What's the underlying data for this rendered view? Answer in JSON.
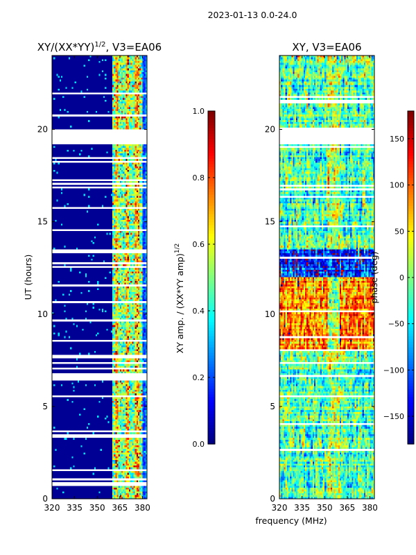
{
  "suptitle": "2023-01-13 0.0-24.0",
  "xlabel_shared": "frequency (MHz)",
  "chart_data": [
    {
      "type": "heatmap",
      "title_main": "XY/(XX*YY)",
      "title_sup": "1/2",
      "title_rest": ", V3=EA06",
      "xlabel": "",
      "ylabel": "UT (hours)",
      "xlim": [
        320,
        383
      ],
      "ylim": [
        0,
        24
      ],
      "xticks": [
        "320",
        "335",
        "350",
        "365",
        "380"
      ],
      "xtick_values": [
        320,
        335,
        350,
        365,
        380
      ],
      "yticks": [
        "0",
        "5",
        "10",
        "15",
        "20"
      ],
      "ytick_values": [
        0,
        5,
        10,
        15,
        20
      ],
      "colorbar": {
        "label_main": "XY amp. / (XX*YY amp)",
        "label_sup": "1/2",
        "range": [
          0.0,
          1.0
        ],
        "ticks": [
          "0.0",
          "0.2",
          "0.4",
          "0.6",
          "0.8",
          "1.0"
        ],
        "tick_values": [
          0.0,
          0.2,
          0.4,
          0.6,
          0.8,
          1.0
        ],
        "colormap": "jet"
      },
      "flagged_ut_ranges": [
        [
          19.2,
          20.0
        ],
        [
          13.3,
          13.5
        ],
        [
          7.6,
          7.8
        ],
        [
          0.7,
          0.9
        ]
      ],
      "bright_channel_band_mhz": [
        360,
        382
      ]
    },
    {
      "type": "heatmap",
      "title_main": "XY, V3=EA06",
      "title_sup": "",
      "title_rest": "",
      "xlabel": "frequency (MHz)",
      "ylabel": "",
      "xlim": [
        320,
        383
      ],
      "ylim": [
        0,
        24
      ],
      "xticks": [
        "320",
        "335",
        "350",
        "365",
        "380"
      ],
      "xtick_values": [
        320,
        335,
        350,
        365,
        380
      ],
      "yticks": [
        "0",
        "5",
        "10",
        "15",
        "20"
      ],
      "ytick_values": [
        0,
        5,
        10,
        15,
        20
      ],
      "colorbar": {
        "label_main": "phase (deg)",
        "label_sup": "",
        "range": [
          -180,
          180
        ],
        "ticks": [
          "−150",
          "−100",
          "−50",
          "0",
          "50",
          "100",
          "150"
        ],
        "tick_values": [
          -150,
          -100,
          -50,
          0,
          50,
          100,
          150
        ],
        "colormap": "jet"
      },
      "flagged_ut_ranges": [
        [
          19.2,
          20.0
        ]
      ]
    }
  ]
}
